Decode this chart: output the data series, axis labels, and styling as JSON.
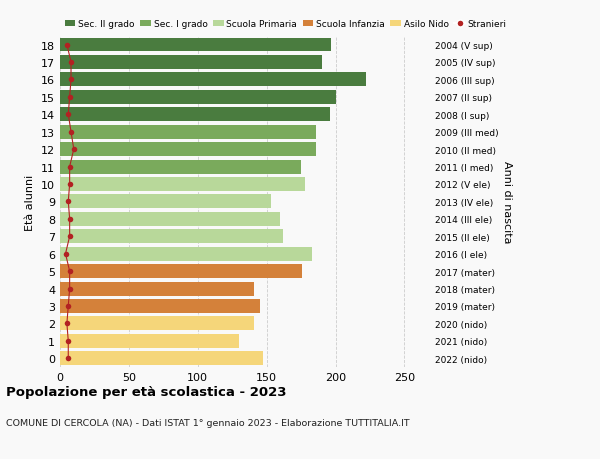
{
  "ages": [
    18,
    17,
    16,
    15,
    14,
    13,
    12,
    11,
    10,
    9,
    8,
    7,
    6,
    5,
    4,
    3,
    2,
    1,
    0
  ],
  "values": [
    197,
    190,
    222,
    200,
    196,
    186,
    186,
    175,
    178,
    153,
    160,
    162,
    183,
    176,
    141,
    145,
    141,
    130,
    147
  ],
  "stranieri": [
    5,
    8,
    8,
    7,
    6,
    8,
    10,
    7,
    7,
    6,
    7,
    7,
    4,
    7,
    7,
    6,
    5,
    6,
    6
  ],
  "right_labels": [
    "2004 (V sup)",
    "2005 (IV sup)",
    "2006 (III sup)",
    "2007 (II sup)",
    "2008 (I sup)",
    "2009 (III med)",
    "2010 (II med)",
    "2011 (I med)",
    "2012 (V ele)",
    "2013 (IV ele)",
    "2014 (III ele)",
    "2015 (II ele)",
    "2016 (I ele)",
    "2017 (mater)",
    "2018 (mater)",
    "2019 (mater)",
    "2020 (nido)",
    "2021 (nido)",
    "2022 (nido)"
  ],
  "bar_colors": [
    "#4a7c3f",
    "#4a7c3f",
    "#4a7c3f",
    "#4a7c3f",
    "#4a7c3f",
    "#7aaa5c",
    "#7aaa5c",
    "#7aaa5c",
    "#b8d89a",
    "#b8d89a",
    "#b8d89a",
    "#b8d89a",
    "#b8d89a",
    "#d4813a",
    "#d4813a",
    "#d4813a",
    "#f5d67a",
    "#f5d67a",
    "#f5d67a"
  ],
  "legend_labels": [
    "Sec. II grado",
    "Sec. I grado",
    "Scuola Primaria",
    "Scuola Infanzia",
    "Asilo Nido",
    "Stranieri"
  ],
  "legend_colors": [
    "#4a7c3f",
    "#7aaa5c",
    "#b8d89a",
    "#d4813a",
    "#f5d67a",
    "#b22222"
  ],
  "title": "Popolazione per età scolastica - 2023",
  "subtitle": "COMUNE DI CERCOLA (NA) - Dati ISTAT 1° gennaio 2023 - Elaborazione TUTTITALIA.IT",
  "ylabel": "Età alunni",
  "ylabel_right": "Anni di nascita",
  "xlim": [
    0,
    270
  ],
  "xticks": [
    0,
    50,
    100,
    150,
    200,
    250
  ],
  "bg_color": "#f9f9f9",
  "grid_color": "#cccccc",
  "stranieri_color": "#b22222",
  "bar_height": 0.8
}
